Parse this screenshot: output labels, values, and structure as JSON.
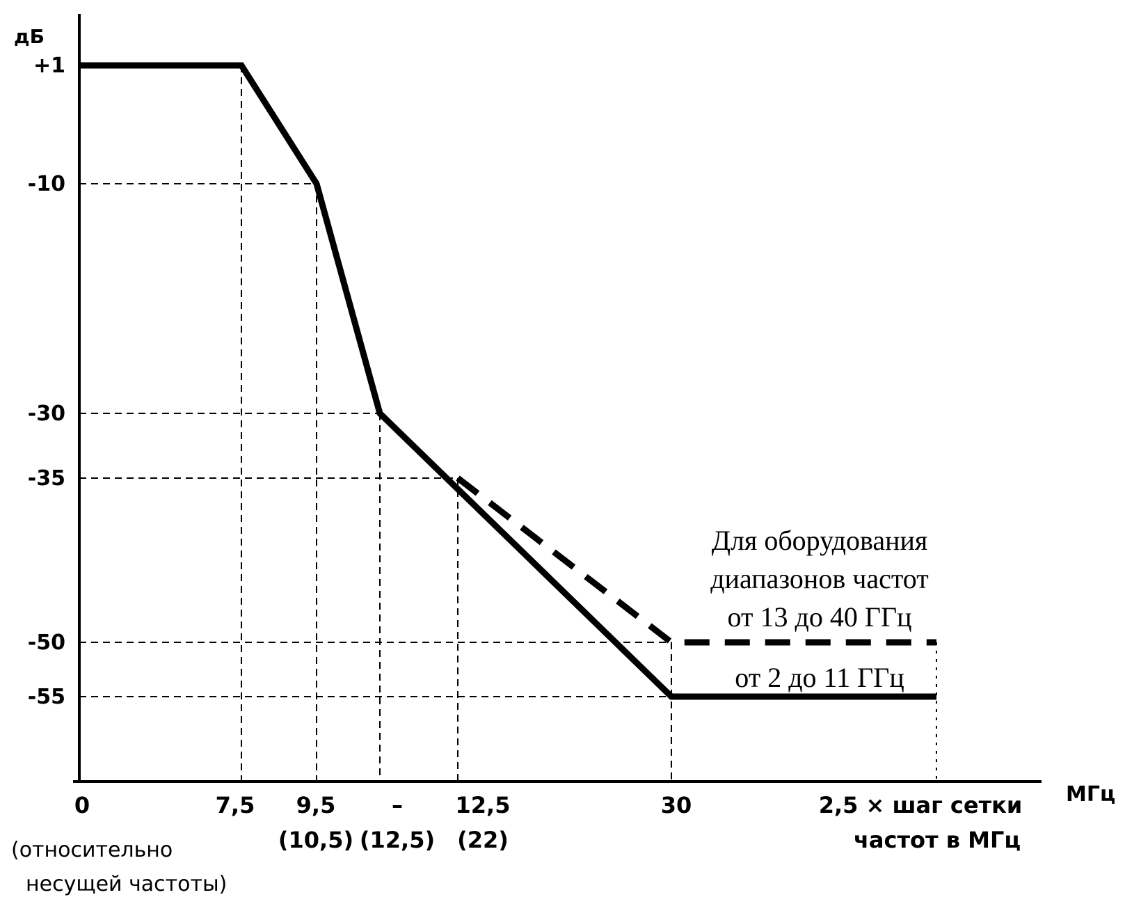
{
  "chart_data": {
    "type": "line",
    "ylabel": "дБ",
    "xlabel": "МГц",
    "y_ticks": [
      {
        "value": 1,
        "label": "+1"
      },
      {
        "value": -10,
        "label": "-10"
      },
      {
        "value": -30,
        "label": "-30"
      },
      {
        "value": -35,
        "label": "-35"
      },
      {
        "value": -50,
        "label": "-50"
      },
      {
        "value": -55,
        "label": "-55"
      }
    ],
    "x_ticks": [
      {
        "value": 0,
        "label": "0"
      },
      {
        "value": 7.5,
        "label": "7,5"
      },
      {
        "value": 9.5,
        "label": "9,5",
        "sublabel": "(10,5)"
      },
      {
        "value": 10.5,
        "label": "–",
        "sublabel": "(12,5)"
      },
      {
        "value": 12.5,
        "label": "12,5",
        "sublabel": "(22)"
      },
      {
        "value": 30,
        "label": "30"
      },
      {
        "value": 35,
        "label": "2,5 × шаг сетки",
        "sublabel": "частот в  МГц"
      }
    ],
    "x_note": [
      "(относительно",
      "несущей частоты)"
    ],
    "series": [
      {
        "name": "от 2 до 11 ГГц",
        "style": "solid",
        "x": [
          0,
          7.5,
          9.5,
          10.5,
          30,
          35
        ],
        "y": [
          1,
          1,
          -10,
          -30,
          -55,
          -55
        ]
      },
      {
        "name": "Для оборудования диапазонов частот от 13 до 40 ГГц",
        "style": "dashed",
        "x": [
          12.5,
          30,
          35
        ],
        "y": [
          -35,
          -50,
          -50
        ]
      }
    ],
    "annotations": [
      "Для оборудования",
      "диапазонов частот",
      "от 13 до 40 ГГц",
      "от 2 до 11 ГГц"
    ],
    "grid": "dashed reference lines at breakpoints",
    "colors": {
      "line": "#000000",
      "background": "#ffffff"
    }
  }
}
